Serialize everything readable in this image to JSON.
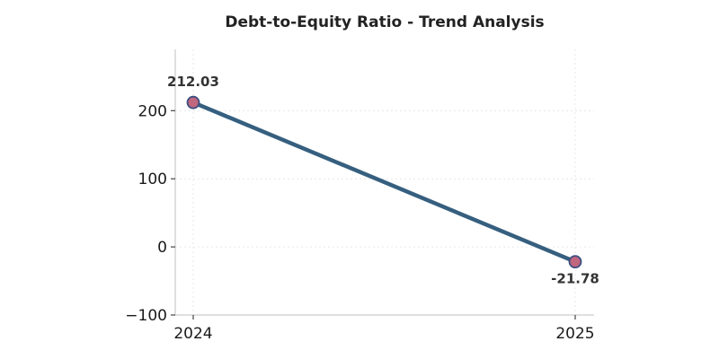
{
  "chart_data": {
    "type": "line",
    "title": "Debt-to-Equity Ratio - Trend Analysis",
    "xlabel": "",
    "ylabel": "",
    "categories": [
      "2024",
      "2025"
    ],
    "series": [
      {
        "values": [
          212.03,
          -21.78
        ],
        "data_labels": [
          "212.03",
          "-21.78"
        ]
      }
    ],
    "ylim": [
      -100,
      290
    ],
    "y_ticks": [
      -100,
      0,
      100,
      200
    ],
    "y_tick_labels": [
      "−100",
      "0",
      "100",
      "200"
    ],
    "grid": true,
    "colors": {
      "line": "#365f7f",
      "marker_fill": "#c0667e",
      "marker_edge": "#3c4e82"
    }
  }
}
